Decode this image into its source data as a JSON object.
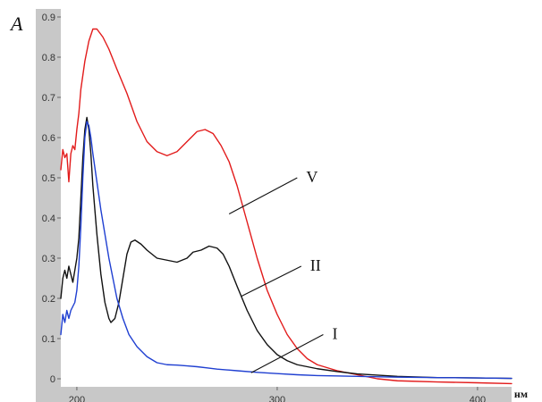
{
  "chart_data": {
    "type": "line",
    "ylabel": "A",
    "xlabel": "нм",
    "xlim": [
      192,
      417
    ],
    "ylim": [
      -0.02,
      0.92
    ],
    "x_ticks": [
      200,
      300,
      400
    ],
    "y_ticks": [
      0,
      0.1,
      0.2,
      0.3,
      0.4,
      0.5,
      0.6,
      0.7,
      0.8,
      0.9
    ],
    "grid": false,
    "colors": {
      "axis_band": "#c8c8c8",
      "plot_bg": "#ffffff",
      "tick_text": "#333333"
    },
    "series": [
      {
        "name": "V",
        "color": "#e21b1b",
        "points": [
          [
            192,
            0.52
          ],
          [
            193,
            0.57
          ],
          [
            194,
            0.55
          ],
          [
            195,
            0.56
          ],
          [
            196,
            0.49
          ],
          [
            197,
            0.56
          ],
          [
            198,
            0.58
          ],
          [
            199,
            0.57
          ],
          [
            200,
            0.62
          ],
          [
            201,
            0.66
          ],
          [
            202,
            0.72
          ],
          [
            204,
            0.79
          ],
          [
            206,
            0.84
          ],
          [
            208,
            0.87
          ],
          [
            210,
            0.87
          ],
          [
            213,
            0.85
          ],
          [
            216,
            0.82
          ],
          [
            220,
            0.77
          ],
          [
            225,
            0.71
          ],
          [
            230,
            0.64
          ],
          [
            235,
            0.59
          ],
          [
            240,
            0.565
          ],
          [
            245,
            0.555
          ],
          [
            250,
            0.565
          ],
          [
            255,
            0.59
          ],
          [
            260,
            0.615
          ],
          [
            264,
            0.62
          ],
          [
            268,
            0.61
          ],
          [
            272,
            0.58
          ],
          [
            276,
            0.54
          ],
          [
            280,
            0.48
          ],
          [
            285,
            0.39
          ],
          [
            290,
            0.3
          ],
          [
            295,
            0.22
          ],
          [
            300,
            0.16
          ],
          [
            305,
            0.11
          ],
          [
            310,
            0.075
          ],
          [
            315,
            0.05
          ],
          [
            320,
            0.035
          ],
          [
            330,
            0.02
          ],
          [
            340,
            0.01
          ],
          [
            350,
            0.0
          ],
          [
            360,
            -0.005
          ],
          [
            380,
            -0.008
          ],
          [
            400,
            -0.01
          ],
          [
            417,
            -0.012
          ]
        ]
      },
      {
        "name": "II",
        "color": "#111111",
        "points": [
          [
            192,
            0.2
          ],
          [
            193,
            0.25
          ],
          [
            194,
            0.27
          ],
          [
            195,
            0.25
          ],
          [
            196,
            0.28
          ],
          [
            197,
            0.26
          ],
          [
            198,
            0.24
          ],
          [
            199,
            0.27
          ],
          [
            200,
            0.3
          ],
          [
            201,
            0.35
          ],
          [
            202,
            0.45
          ],
          [
            203,
            0.55
          ],
          [
            204,
            0.62
          ],
          [
            205,
            0.65
          ],
          [
            206,
            0.62
          ],
          [
            207,
            0.56
          ],
          [
            208,
            0.48
          ],
          [
            210,
            0.36
          ],
          [
            212,
            0.26
          ],
          [
            214,
            0.19
          ],
          [
            216,
            0.15
          ],
          [
            217,
            0.14
          ],
          [
            219,
            0.15
          ],
          [
            221,
            0.19
          ],
          [
            223,
            0.25
          ],
          [
            225,
            0.31
          ],
          [
            227,
            0.34
          ],
          [
            229,
            0.345
          ],
          [
            232,
            0.335
          ],
          [
            235,
            0.32
          ],
          [
            240,
            0.3
          ],
          [
            245,
            0.295
          ],
          [
            250,
            0.29
          ],
          [
            255,
            0.3
          ],
          [
            258,
            0.315
          ],
          [
            262,
            0.32
          ],
          [
            266,
            0.33
          ],
          [
            270,
            0.325
          ],
          [
            273,
            0.31
          ],
          [
            276,
            0.28
          ],
          [
            280,
            0.23
          ],
          [
            285,
            0.17
          ],
          [
            290,
            0.12
          ],
          [
            295,
            0.085
          ],
          [
            300,
            0.06
          ],
          [
            305,
            0.045
          ],
          [
            310,
            0.035
          ],
          [
            320,
            0.025
          ],
          [
            330,
            0.018
          ],
          [
            340,
            0.012
          ],
          [
            360,
            0.006
          ],
          [
            380,
            0.003
          ],
          [
            400,
            0.002
          ],
          [
            417,
            0.001
          ]
        ]
      },
      {
        "name": "I",
        "color": "#1f3fd1",
        "points": [
          [
            192,
            0.11
          ],
          [
            193,
            0.16
          ],
          [
            194,
            0.14
          ],
          [
            195,
            0.17
          ],
          [
            196,
            0.15
          ],
          [
            197,
            0.17
          ],
          [
            198,
            0.18
          ],
          [
            199,
            0.19
          ],
          [
            200,
            0.22
          ],
          [
            201,
            0.28
          ],
          [
            202,
            0.38
          ],
          [
            203,
            0.5
          ],
          [
            204,
            0.6
          ],
          [
            205,
            0.64
          ],
          [
            206,
            0.63
          ],
          [
            207,
            0.6
          ],
          [
            208,
            0.56
          ],
          [
            210,
            0.49
          ],
          [
            212,
            0.42
          ],
          [
            214,
            0.36
          ],
          [
            216,
            0.3
          ],
          [
            218,
            0.25
          ],
          [
            220,
            0.2
          ],
          [
            223,
            0.15
          ],
          [
            226,
            0.11
          ],
          [
            230,
            0.08
          ],
          [
            235,
            0.055
          ],
          [
            240,
            0.04
          ],
          [
            245,
            0.035
          ],
          [
            250,
            0.034
          ],
          [
            255,
            0.032
          ],
          [
            260,
            0.03
          ],
          [
            265,
            0.027
          ],
          [
            270,
            0.024
          ],
          [
            280,
            0.02
          ],
          [
            290,
            0.016
          ],
          [
            300,
            0.013
          ],
          [
            310,
            0.01
          ],
          [
            320,
            0.008
          ],
          [
            340,
            0.006
          ],
          [
            360,
            0.004
          ],
          [
            380,
            0.003
          ],
          [
            400,
            0.002
          ],
          [
            417,
            0.001
          ]
        ]
      }
    ],
    "annotations": [
      {
        "text": "V",
        "series": "V",
        "pointer_from": [
          310,
          0.5
        ],
        "pointer_to": [
          276,
          0.41
        ]
      },
      {
        "text": "II",
        "series": "II",
        "pointer_from": [
          312,
          0.28
        ],
        "pointer_to": [
          282,
          0.205
        ]
      },
      {
        "text": "I",
        "series": "I",
        "pointer_from": [
          323,
          0.11
        ],
        "pointer_to": [
          287,
          0.015
        ]
      }
    ]
  }
}
